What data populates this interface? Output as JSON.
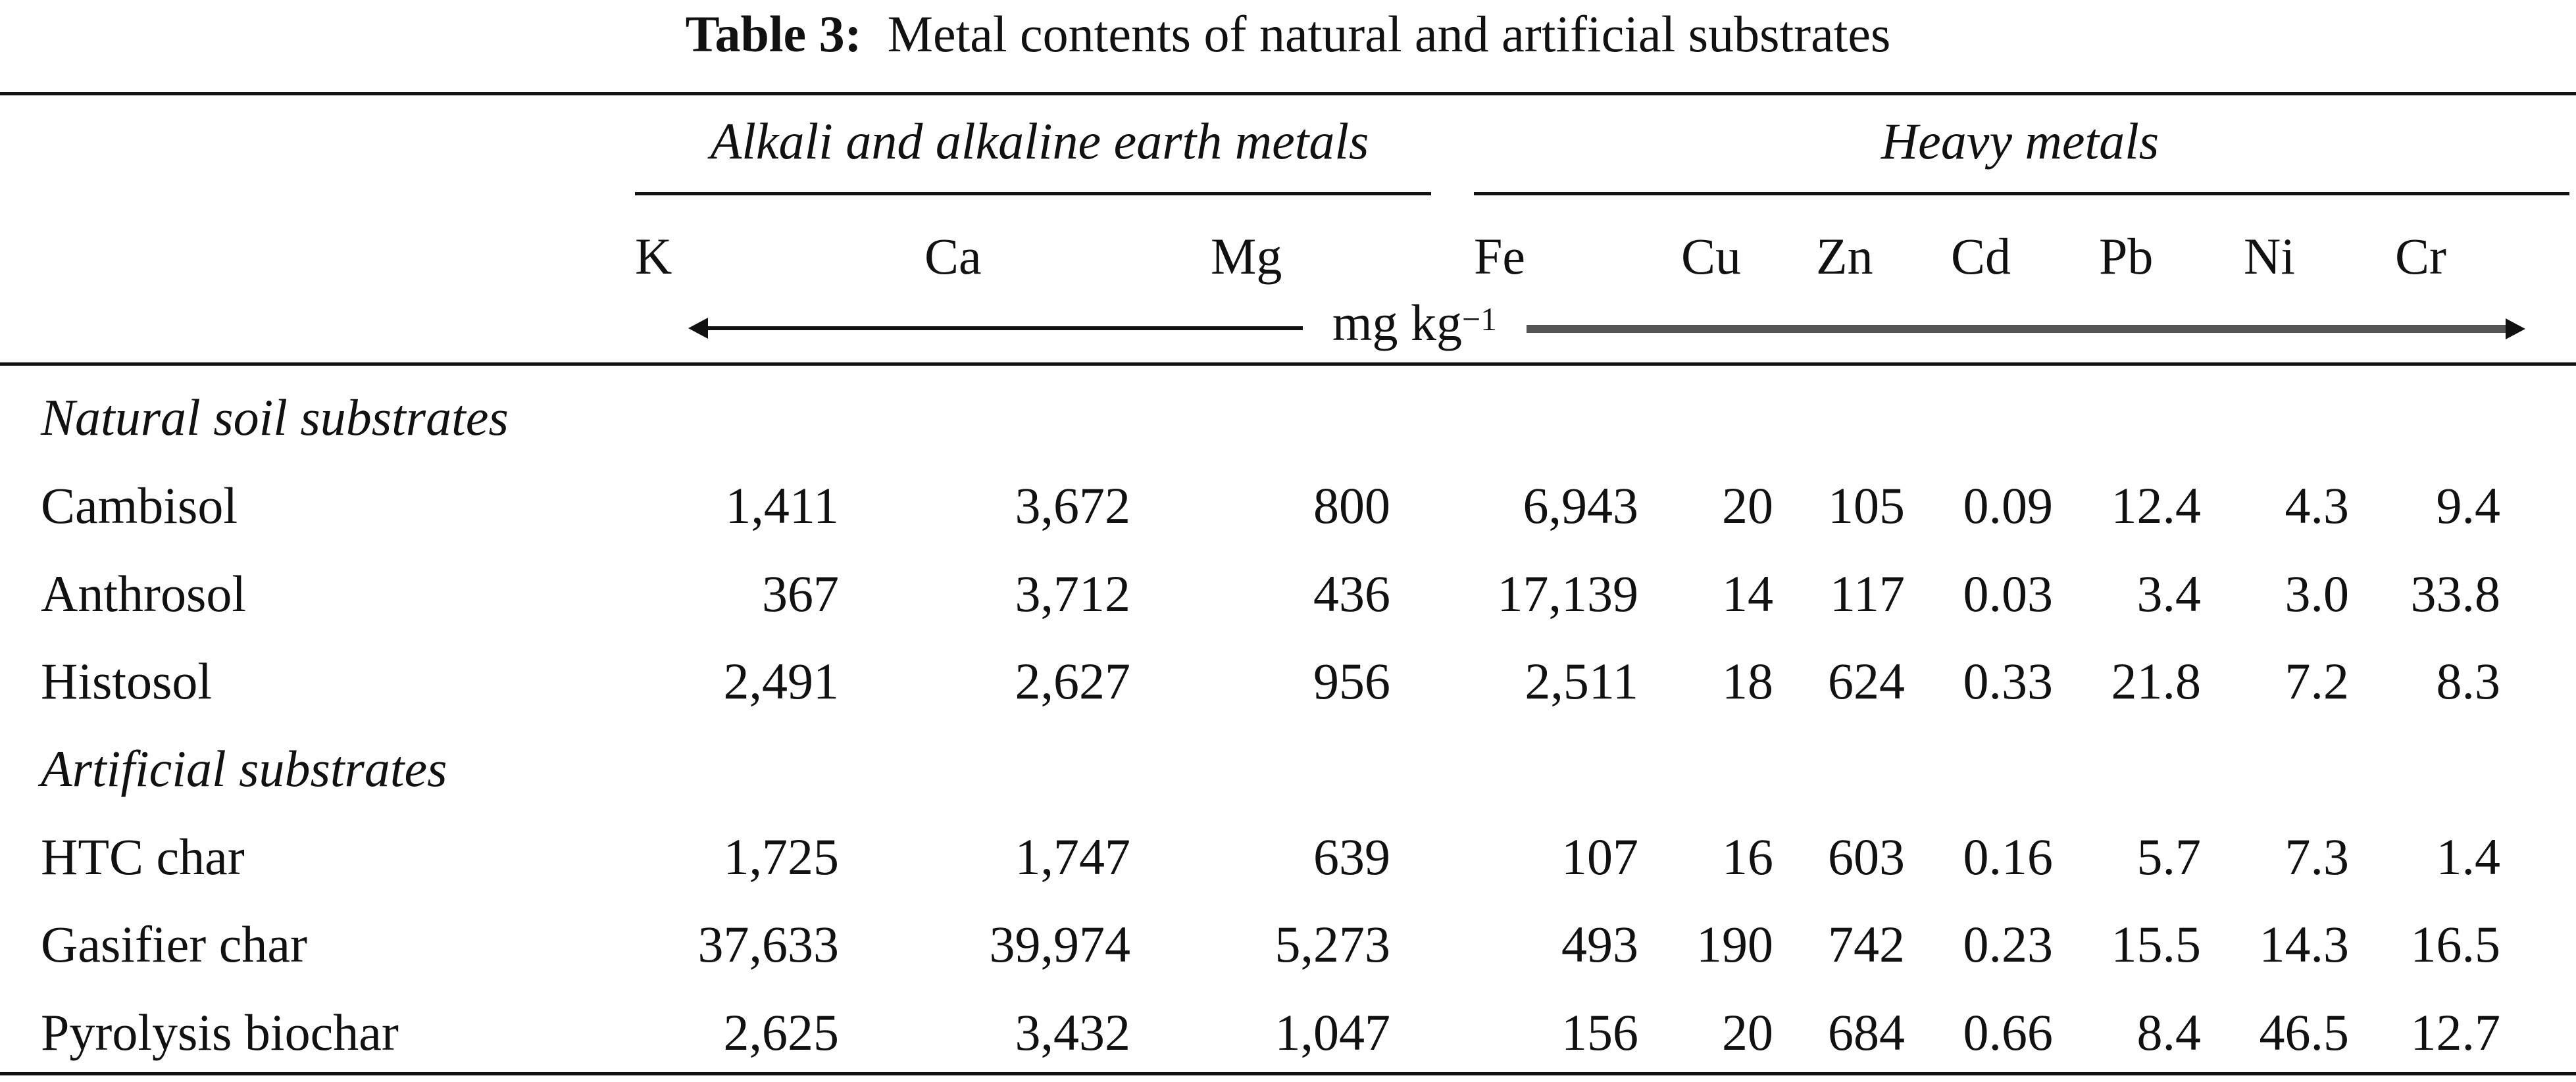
{
  "caption": {
    "label": "Table 3:",
    "text": "Metal contents of natural and artificial substrates"
  },
  "group_headers": {
    "alkali": "Alkali and alkaline earth metals",
    "heavy": "Heavy metals"
  },
  "columns": [
    "K",
    "Ca",
    "Mg",
    "Fe",
    "Cu",
    "Zn",
    "Cd",
    "Pb",
    "Ni",
    "Cr"
  ],
  "unit": {
    "base": "mg kg",
    "exponent": "−1"
  },
  "sections": [
    {
      "title": "Natural soil substrates",
      "rows": [
        {
          "name": "Cambisol",
          "values": [
            "1,411",
            "3,672",
            "800",
            "6,943",
            "20",
            "105",
            "0.09",
            "12.4",
            "4.3",
            "9.4"
          ]
        },
        {
          "name": "Anthrosol",
          "values": [
            "367",
            "3,712",
            "436",
            "17,139",
            "14",
            "117",
            "0.03",
            "3.4",
            "3.0",
            "33.8"
          ]
        },
        {
          "name": "Histosol",
          "values": [
            "2,491",
            "2,627",
            "956",
            "2,511",
            "18",
            "624",
            "0.33",
            "21.8",
            "7.2",
            "8.3"
          ]
        }
      ]
    },
    {
      "title": "Artificial substrates",
      "rows": [
        {
          "name": "HTC char",
          "values": [
            "1,725",
            "1,747",
            "639",
            "107",
            "16",
            "603",
            "0.16",
            "5.7",
            "7.3",
            "1.4"
          ]
        },
        {
          "name": "Gasifier char",
          "values": [
            "37,633",
            "39,974",
            "5,273",
            "493",
            "190",
            "742",
            "0.23",
            "15.5",
            "14.3",
            "16.5"
          ]
        },
        {
          "name": "Pyrolysis biochar",
          "values": [
            "2,625",
            "3,432",
            "1,047",
            "156",
            "20",
            "684",
            "0.66",
            "8.4",
            "46.5",
            "12.7"
          ]
        }
      ]
    }
  ]
}
